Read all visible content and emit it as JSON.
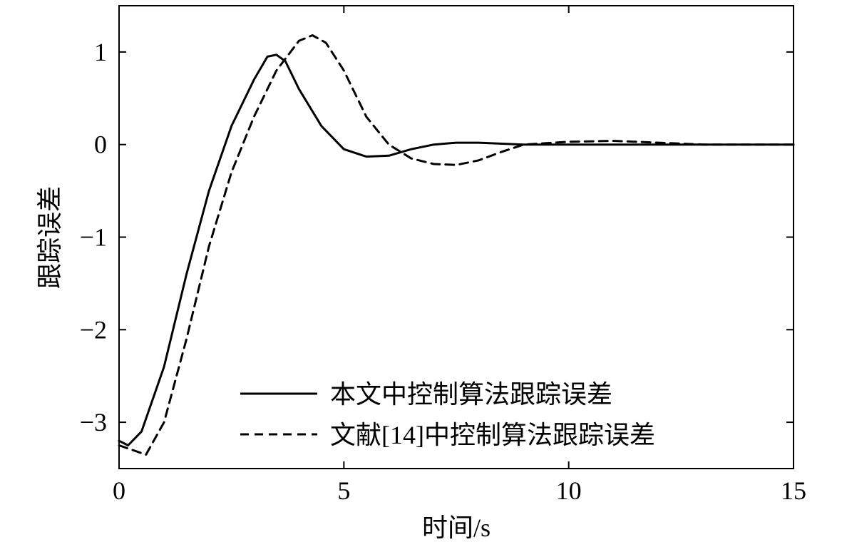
{
  "chart_data": {
    "type": "line",
    "title": "",
    "xlabel": "时间/s",
    "ylabel": "跟踪误差",
    "xlim": [
      0,
      15
    ],
    "ylim": [
      -3.5,
      1.5
    ],
    "xticks": [
      0,
      5,
      10,
      15
    ],
    "xtick_labels": [
      "0",
      "5",
      "10",
      "15"
    ],
    "yticks": [
      1,
      0,
      -1,
      -2,
      -3
    ],
    "ytick_labels": [
      "1",
      "0",
      "−1",
      "−2",
      "−3"
    ],
    "grid": false,
    "legend_position": "bottom-right",
    "series": [
      {
        "name": "本文中控制算法跟踪误差",
        "line_style": "solid",
        "color": "#000000",
        "x": [
          0,
          0.2,
          0.5,
          1.0,
          1.5,
          2.0,
          2.5,
          3.0,
          3.3,
          3.5,
          3.7,
          4.0,
          4.5,
          5.0,
          5.5,
          6.0,
          6.5,
          7.0,
          7.5,
          8.0,
          9.0,
          10.0,
          12.0,
          15.0
        ],
        "y": [
          -3.2,
          -3.25,
          -3.1,
          -2.4,
          -1.4,
          -0.5,
          0.2,
          0.7,
          0.95,
          0.97,
          0.9,
          0.6,
          0.2,
          -0.05,
          -0.13,
          -0.12,
          -0.05,
          0.0,
          0.02,
          0.02,
          0.0,
          0.0,
          0.0,
          0.0
        ]
      },
      {
        "name": "文献[14]中控制算法跟踪误差",
        "line_style": "dashed",
        "color": "#000000",
        "x": [
          0,
          0.3,
          0.6,
          1.0,
          1.5,
          2.0,
          2.5,
          3.0,
          3.5,
          4.0,
          4.3,
          4.6,
          5.0,
          5.5,
          6.0,
          6.5,
          7.0,
          7.5,
          8.0,
          8.5,
          9.0,
          10.0,
          11.0,
          12.0,
          13.0,
          15.0
        ],
        "y": [
          -3.25,
          -3.3,
          -3.35,
          -3.0,
          -2.1,
          -1.1,
          -0.3,
          0.3,
          0.8,
          1.12,
          1.18,
          1.1,
          0.8,
          0.3,
          0.0,
          -0.15,
          -0.21,
          -0.22,
          -0.17,
          -0.08,
          0.0,
          0.03,
          0.04,
          0.02,
          0.0,
          0.0
        ]
      }
    ]
  }
}
